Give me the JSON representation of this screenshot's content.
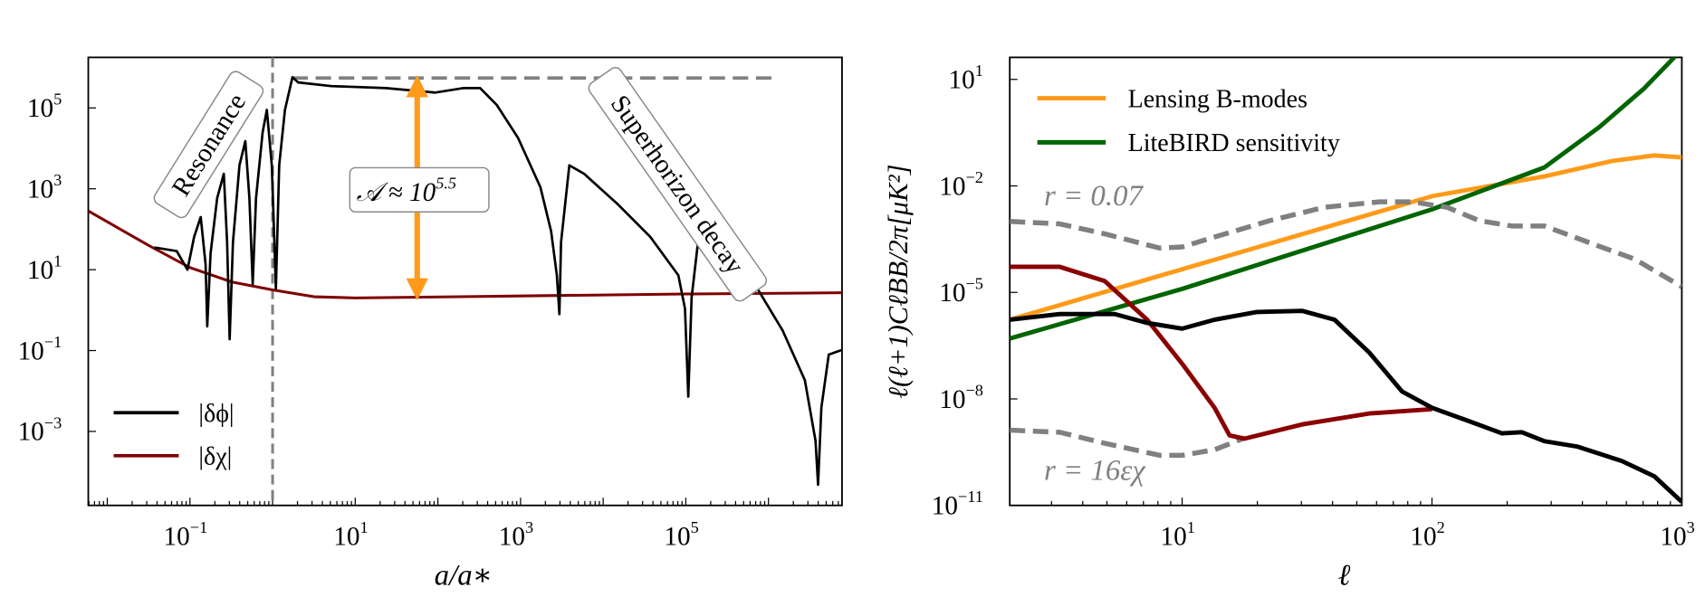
{
  "chart_data": [
    {
      "type": "line",
      "xscale": "log",
      "yscale": "log",
      "xlabel": "a/a∗",
      "ylabel": "",
      "xlim_log10": [
        -2.23,
        6.89
      ],
      "ylim_log10": [
        -4.83,
        6.25
      ],
      "xtick_exponents": [
        "-1",
        "1",
        "3",
        "5"
      ],
      "ytick_exponents": [
        "-3",
        "-1",
        "1",
        "3",
        "5"
      ],
      "tick_base": "10",
      "legend_position": "lower-left",
      "series": [
        {
          "name": "|δϕ|",
          "color": "#000000",
          "points_log10": [
            [
              -1.43,
              1.55
            ],
            [
              -1.16,
              1.46
            ],
            [
              -1.03,
              1.0
            ],
            [
              -0.95,
              1.81
            ],
            [
              -0.87,
              2.3
            ],
            [
              -0.81,
              1.13
            ],
            [
              -0.79,
              -0.4
            ],
            [
              -0.75,
              1.4
            ],
            [
              -0.67,
              2.77
            ],
            [
              -0.59,
              3.37
            ],
            [
              -0.55,
              1.68
            ],
            [
              -0.52,
              -0.72
            ],
            [
              -0.48,
              1.68
            ],
            [
              -0.4,
              3.58
            ],
            [
              -0.33,
              4.18
            ],
            [
              -0.28,
              2.77
            ],
            [
              -0.24,
              0.64
            ],
            [
              -0.2,
              2.77
            ],
            [
              -0.12,
              4.4
            ],
            [
              -0.07,
              4.95
            ],
            [
              -0.01,
              3.58
            ],
            [
              0.04,
              0.53
            ],
            [
              0.08,
              3.58
            ],
            [
              0.15,
              4.95
            ],
            [
              0.24,
              5.76
            ],
            [
              0.31,
              5.63
            ],
            [
              0.71,
              5.54
            ],
            [
              1.37,
              5.49
            ],
            [
              1.97,
              5.38
            ],
            [
              2.31,
              5.49
            ],
            [
              2.51,
              5.49
            ],
            [
              2.71,
              5.08
            ],
            [
              2.97,
              4.26
            ],
            [
              3.24,
              3.04
            ],
            [
              3.37,
              1.95
            ],
            [
              3.44,
              0.86
            ],
            [
              3.47,
              -0.1
            ],
            [
              3.49,
              1.68
            ],
            [
              3.59,
              3.58
            ],
            [
              3.77,
              3.37
            ],
            [
              4.17,
              2.63
            ],
            [
              4.57,
              1.81
            ],
            [
              4.91,
              0.86
            ],
            [
              4.99,
              0.04
            ],
            [
              5.03,
              -2.14
            ],
            [
              5.07,
              0.31
            ],
            [
              5.17,
              2.08
            ],
            [
              5.37,
              1.81
            ],
            [
              5.77,
              0.86
            ],
            [
              6.17,
              -0.5
            ],
            [
              6.44,
              -1.73
            ],
            [
              6.57,
              -3.23
            ],
            [
              6.6,
              -4.32
            ],
            [
              6.64,
              -2.41
            ],
            [
              6.73,
              -1.1
            ],
            [
              6.88,
              -0.99
            ]
          ]
        },
        {
          "name": "|δχ|",
          "color": "#7f0000",
          "points_log10": [
            [
              -2.23,
              2.45
            ],
            [
              -1.5,
              1.6
            ],
            [
              -1,
              1.05
            ],
            [
              -0.5,
              0.7
            ],
            [
              0,
              0.5
            ],
            [
              0.5,
              0.33
            ],
            [
              1,
              0.3
            ],
            [
              3,
              0.35
            ],
            [
              5,
              0.4
            ],
            [
              6.89,
              0.43
            ]
          ]
        }
      ],
      "reference_lines": {
        "amplitude_level_log10": 5.74,
        "amplitude_x_range_log10": [
          0.24,
          6.04
        ],
        "a_star_x_log10": 0.0,
        "arrow_x_log10": 1.75,
        "arrow_y_range_log10": [
          0.35,
          5.7
        ]
      },
      "annotations": {
        "resonance": "Resonance",
        "superhorizon": "Superhorizon decay",
        "amplitude_prefix": "𝒜 ≈ 10",
        "amplitude_exp": "5.5"
      },
      "colors": {
        "arrow": "#ff9a1a",
        "reference": "#808080"
      }
    },
    {
      "type": "line",
      "xscale": "log",
      "yscale": "log",
      "xlabel": "ℓ",
      "ylabel": "ℓ(ℓ+1)CℓBB/2π[μK²]",
      "xlim_log10": [
        0.31,
        3.0
      ],
      "ylim_log10": [
        -11,
        1.62
      ],
      "xtick_exponents": [
        "1",
        "2",
        "3"
      ],
      "ytick_exponents": [
        "1",
        "-2",
        "-5",
        "-8",
        "-11"
      ],
      "tick_base": "10",
      "legend_position": "upper-left",
      "series": [
        {
          "name": "Lensing B-modes",
          "color": "#ff9a1a",
          "in_legend": true,
          "points_log10": [
            [
              0.31,
              -5.77
            ],
            [
              2.0,
              -2.29
            ],
            [
              2.45,
              -1.73
            ],
            [
              2.72,
              -1.3
            ],
            [
              2.89,
              -1.14
            ],
            [
              3.0,
              -1.2
            ]
          ]
        },
        {
          "name": "LiteBIRD sensitivity",
          "color": "#006400",
          "in_legend": true,
          "points_log10": [
            [
              0.31,
              -6.3
            ],
            [
              1,
              -4.9
            ],
            [
              2,
              -2.66
            ],
            [
              2.45,
              -1.48
            ],
            [
              2.67,
              -0.34
            ],
            [
              2.85,
              0.75
            ],
            [
              3.0,
              1.84
            ]
          ]
        },
        {
          "name": "r = 0.07",
          "color": "#808080",
          "dashed": true,
          "points_log10": [
            [
              0.31,
              -3.0
            ],
            [
              0.51,
              -3.07
            ],
            [
              0.69,
              -3.35
            ],
            [
              0.91,
              -3.75
            ],
            [
              1,
              -3.72
            ],
            [
              1.13,
              -3.44
            ],
            [
              1.35,
              -2.98
            ],
            [
              1.57,
              -2.6
            ],
            [
              1.79,
              -2.45
            ],
            [
              1.92,
              -2.45
            ],
            [
              2.06,
              -2.6
            ],
            [
              2.19,
              -2.98
            ],
            [
              2.32,
              -3.13
            ],
            [
              2.45,
              -3.13
            ],
            [
              2.63,
              -3.6
            ],
            [
              2.81,
              -4.06
            ],
            [
              3.0,
              -4.84
            ]
          ]
        },
        {
          "name": "r = 16εχ",
          "color": "#808080",
          "dashed": true,
          "points_log10": [
            [
              0.31,
              -8.88
            ],
            [
              0.51,
              -8.94
            ],
            [
              0.69,
              -9.25
            ],
            [
              0.91,
              -9.59
            ],
            [
              1,
              -9.59
            ],
            [
              1.13,
              -9.43
            ],
            [
              1.25,
              -9.1
            ]
          ]
        },
        {
          "name": "red",
          "color": "#8b0000",
          "points_log10": [
            [
              0.31,
              -4.28
            ],
            [
              0.51,
              -4.28
            ],
            [
              0.69,
              -4.68
            ],
            [
              0.86,
              -5.77
            ],
            [
              1,
              -7.01
            ],
            [
              1.13,
              -8.25
            ],
            [
              1.19,
              -9.03
            ],
            [
              1.25,
              -9.12
            ],
            [
              1.48,
              -8.72
            ],
            [
              1.75,
              -8.41
            ],
            [
              2.0,
              -8.29
            ]
          ]
        },
        {
          "name": "black",
          "color": "#000000",
          "points_log10": [
            [
              0.31,
              -5.77
            ],
            [
              0.51,
              -5.61
            ],
            [
              0.73,
              -5.61
            ],
            [
              0.86,
              -5.86
            ],
            [
              1,
              -6.02
            ],
            [
              1.13,
              -5.77
            ],
            [
              1.3,
              -5.55
            ],
            [
              1.48,
              -5.52
            ],
            [
              1.61,
              -5.77
            ],
            [
              1.75,
              -6.7
            ],
            [
              1.88,
              -7.79
            ],
            [
              2.0,
              -8.25
            ],
            [
              2.15,
              -8.63
            ],
            [
              2.28,
              -8.97
            ],
            [
              2.36,
              -8.94
            ],
            [
              2.45,
              -9.19
            ],
            [
              2.58,
              -9.34
            ],
            [
              2.76,
              -9.75
            ],
            [
              2.89,
              -10.18
            ],
            [
              3.0,
              -10.9
            ]
          ]
        }
      ],
      "annotations": {
        "r007": "r = 0.07",
        "r16": "r = 16εχ"
      }
    }
  ]
}
